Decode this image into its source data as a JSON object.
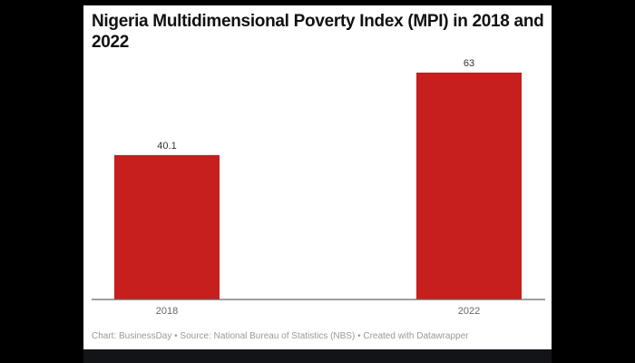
{
  "chart_data": {
    "type": "bar",
    "title": "Nigeria Multidimensional Poverty Index (MPI) in 2018 and 2022",
    "categories": [
      "2018",
      "2022"
    ],
    "values": [
      40.1,
      63
    ],
    "value_labels": [
      "40.1",
      "63"
    ],
    "xlabel": "",
    "ylabel": "",
    "ylim": [
      0,
      63
    ],
    "grid": false,
    "bar_color": "#c71e1e",
    "footer": "Chart: BusinessDay • Source: National Bureau of Statistics (NBS) • Created with Datawrapper"
  }
}
